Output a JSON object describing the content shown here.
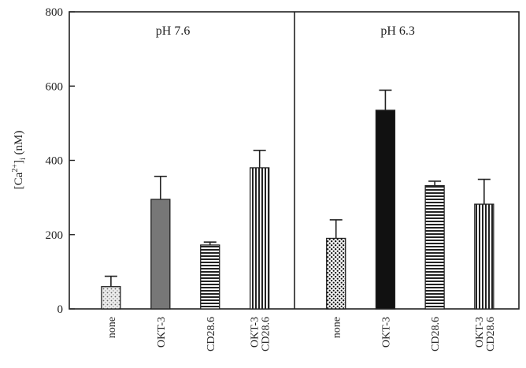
{
  "chart_data": {
    "type": "bar",
    "ylabel": "[Ca2+]i (nM)",
    "ylim": [
      0,
      800
    ],
    "yticks": [
      0,
      200,
      400,
      600,
      800
    ],
    "grid": false,
    "panels": [
      {
        "label": "pH 7.6",
        "categories": [
          {
            "lines": [
              "none"
            ]
          },
          {
            "lines": [
              "OKT-3"
            ]
          },
          {
            "lines": [
              "CD28.6"
            ]
          },
          {
            "lines": [
              "OKT-3",
              "CD28.6"
            ]
          }
        ],
        "values": [
          60,
          295,
          172,
          380
        ],
        "errors": [
          28,
          62,
          8,
          47
        ],
        "patterns": [
          "dots-light",
          "solid-gray",
          "horizontal-stripes",
          "vertical-stripes"
        ]
      },
      {
        "label": "pH 6.3",
        "categories": [
          {
            "lines": [
              "none"
            ]
          },
          {
            "lines": [
              "OKT-3"
            ]
          },
          {
            "lines": [
              "CD28.6"
            ]
          },
          {
            "lines": [
              "OKT-3",
              "CD28.6"
            ]
          }
        ],
        "values": [
          190,
          535,
          332,
          282
        ],
        "errors": [
          50,
          54,
          12,
          67
        ],
        "patterns": [
          "dots-dense",
          "solid-black",
          "horizontal-stripes",
          "vertical-stripes"
        ]
      }
    ]
  }
}
